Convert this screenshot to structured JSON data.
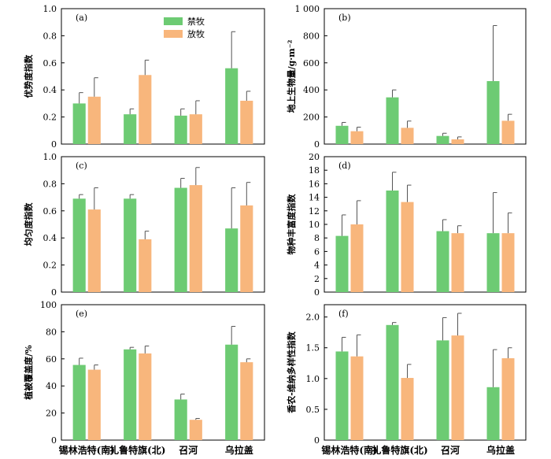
{
  "legend": {
    "series": [
      "禁牧",
      "放牧"
    ]
  },
  "colors": {
    "grazing_ban": "#6DCB73",
    "grazing": "#F8B67C"
  },
  "chart_data": [
    {
      "type": "bar",
      "panel": "(a)",
      "ylabel": "优势度指数",
      "ylim": [
        0,
        1.0
      ],
      "yticks": [
        "0",
        "0.2",
        "0.4",
        "0.6",
        "0.8",
        "1.0"
      ],
      "ytick_values": [
        0,
        0.2,
        0.4,
        0.6,
        0.8,
        1.0
      ],
      "categories": [
        "锡林浩特(南)",
        "扎鲁特旗(北)",
        "召河",
        "乌拉盖"
      ],
      "series": [
        {
          "name": "禁牧",
          "values": [
            0.3,
            0.22,
            0.21,
            0.56
          ],
          "errors": [
            0.08,
            0.04,
            0.05,
            0.27
          ]
        },
        {
          "name": "放牧",
          "values": [
            0.35,
            0.51,
            0.22,
            0.32
          ],
          "errors": [
            0.14,
            0.11,
            0.1,
            0.07
          ]
        }
      ],
      "show_legend": true
    },
    {
      "type": "bar",
      "panel": "(b)",
      "ylabel": "地上生物量/g·m⁻²",
      "ylim": [
        0,
        1000
      ],
      "yticks": [
        "0",
        "200",
        "400",
        "600",
        "800",
        "1 000"
      ],
      "ytick_values": [
        0,
        200,
        400,
        600,
        800,
        1000
      ],
      "categories": [
        "锡林浩特(南)",
        "扎鲁特旗(北)",
        "召河",
        "乌拉盖"
      ],
      "series": [
        {
          "name": "禁牧",
          "values": [
            135,
            345,
            60,
            465
          ],
          "errors": [
            25,
            55,
            20,
            410
          ]
        },
        {
          "name": "放牧",
          "values": [
            95,
            120,
            35,
            172
          ],
          "errors": [
            30,
            50,
            18,
            48
          ]
        }
      ]
    },
    {
      "type": "bar",
      "panel": "(c)",
      "ylabel": "均匀度指数",
      "ylim": [
        0,
        1.0
      ],
      "yticks": [
        "0",
        "0.2",
        "0.4",
        "0.6",
        "0.8",
        "1.0"
      ],
      "ytick_values": [
        0,
        0.2,
        0.4,
        0.6,
        0.8,
        1.0
      ],
      "categories": [
        "锡林浩特(南)",
        "扎鲁特旗(北)",
        "召河",
        "乌拉盖"
      ],
      "series": [
        {
          "name": "禁牧",
          "values": [
            0.69,
            0.69,
            0.77,
            0.47
          ],
          "errors": [
            0.03,
            0.03,
            0.07,
            0.3
          ]
        },
        {
          "name": "放牧",
          "values": [
            0.61,
            0.39,
            0.79,
            0.64
          ],
          "errors": [
            0.16,
            0.06,
            0.13,
            0.17
          ]
        }
      ]
    },
    {
      "type": "bar",
      "panel": "(d)",
      "ylabel": "物种丰富度指数",
      "ylim": [
        0,
        20
      ],
      "yticks": [
        "0",
        "2",
        "4",
        "6",
        "8",
        "10",
        "12",
        "14",
        "16",
        "18",
        "20"
      ],
      "ytick_values": [
        0,
        2,
        4,
        6,
        8,
        10,
        12,
        14,
        16,
        18,
        20
      ],
      "categories": [
        "锡林浩特(南)",
        "扎鲁特旗(北)",
        "召河",
        "乌拉盖"
      ],
      "series": [
        {
          "name": "禁牧",
          "values": [
            8.3,
            15.0,
            9.0,
            8.7
          ],
          "errors": [
            3.1,
            2.7,
            1.7,
            6.0
          ]
        },
        {
          "name": "放牧",
          "values": [
            10.0,
            13.3,
            8.7,
            8.7
          ],
          "errors": [
            3.5,
            2.5,
            1.1,
            3.0
          ]
        }
      ]
    },
    {
      "type": "bar",
      "panel": "(e)",
      "ylabel": "植被覆盖度/%",
      "ylim": [
        0,
        100
      ],
      "yticks": [
        "0",
        "20",
        "40",
        "60",
        "80",
        "100"
      ],
      "ytick_values": [
        0,
        20,
        40,
        60,
        80,
        100
      ],
      "categories": [
        "锡林浩特(南)",
        "扎鲁特旗(北)",
        "召河",
        "乌拉盖"
      ],
      "series": [
        {
          "name": "禁牧",
          "values": [
            55.5,
            67.0,
            30.0,
            70.5
          ],
          "errors": [
            5.0,
            1.5,
            4.0,
            13.5
          ]
        },
        {
          "name": "放牧",
          "values": [
            52.0,
            64.0,
            15.0,
            57.5
          ],
          "errors": [
            3.5,
            5.5,
            1.0,
            2.5
          ]
        }
      ]
    },
    {
      "type": "bar",
      "panel": "(f)",
      "ylabel": "香农-维纳多样性指数",
      "ylim": [
        0,
        2.2
      ],
      "yticks": [
        "0",
        "0.5",
        "1.0",
        "1.5",
        "2.0"
      ],
      "ytick_values": [
        0,
        0.5,
        1.0,
        1.5,
        2.0
      ],
      "categories": [
        "锡林浩特(南)",
        "扎鲁特旗(北)",
        "召河",
        "乌拉盖"
      ],
      "series": [
        {
          "name": "禁牧",
          "values": [
            1.44,
            1.87,
            1.62,
            0.86
          ],
          "errors": [
            0.23,
            0.04,
            0.37,
            0.61
          ]
        },
        {
          "name": "放牧",
          "values": [
            1.36,
            1.01,
            1.7,
            1.33
          ],
          "errors": [
            0.35,
            0.22,
            0.36,
            0.17
          ]
        }
      ]
    }
  ]
}
